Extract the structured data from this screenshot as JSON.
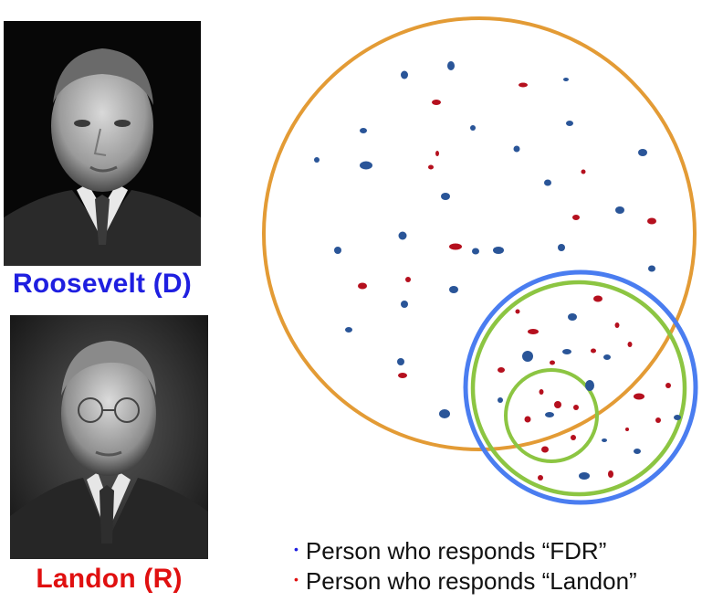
{
  "colors": {
    "democrat": "#1f1fe0",
    "republican": "#e01010",
    "dot_fdr": "#2a5598",
    "dot_landon": "#b5101e",
    "circle_population": "#e39b35",
    "circle_sample_frame": "#4a7df0",
    "circle_respondents": "#8cc542"
  },
  "candidates": [
    {
      "name": "Roosevelt (D)",
      "party_color": "#1f1fe0"
    },
    {
      "name": "Landon (R)",
      "party_color": "#e01010"
    }
  ],
  "legend": [
    {
      "bullet": "•",
      "label": "Person who responds “FDR”",
      "color": "#1f1fe0"
    },
    {
      "bullet": "•",
      "label": "Person who responds “Landon”",
      "color": "#e01010"
    }
  ]
}
